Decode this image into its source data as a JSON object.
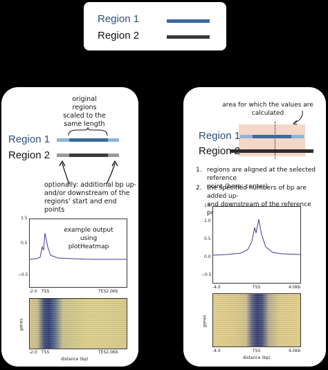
{
  "legend": {
    "region1_label": "Region 1",
    "region2_label": "Region 2",
    "region1_color": "#3a6aa0",
    "region2_color": "#3a3a3a"
  },
  "left_panel": {
    "annotation_top": "original\nregions\nscaled to the\nsame length",
    "region1_label": "Region 1",
    "region2_label": "Region 2",
    "annotation_bottom": "optionally: additional bp up-\nand/or downstream of the\nregions' start and end points",
    "example_note": "example output using\nplotHeatmap",
    "profile": {
      "yticks": [
        "1.5",
        "0.5",
        "−0.5"
      ],
      "xticks": [
        "-2.0",
        "TSS",
        "TES2.0Kb"
      ]
    },
    "heatmap": {
      "ylabel": "genes",
      "xticks": [
        "-2.0",
        "TSS",
        "TES2.0Kb"
      ],
      "xlabel": "distance (bp)"
    }
  },
  "right_panel": {
    "annotation_top": "area for which the values are calculated",
    "region1_label": "Region 1",
    "region2_label": "Region 2",
    "step1_num": "1.",
    "step1_text": "regions are aligned at the selected reference\npoint (here: center)",
    "step2_num": "2.",
    "step2_text": "the specified numbers of bp are added up-\nand downstream of the reference point",
    "profile": {
      "yticks": [
        "1.5",
        "1.0",
        "0.5",
        "0.0",
        "−0.5"
      ],
      "xticks": [
        "-4.0",
        "TSS",
        "4.0Kb"
      ]
    },
    "heatmap": {
      "ylabel": "genes",
      "xticks": [
        "-4.0",
        "TSS",
        "4.0Kb"
      ],
      "xlabel": "distance (bp)"
    }
  }
}
